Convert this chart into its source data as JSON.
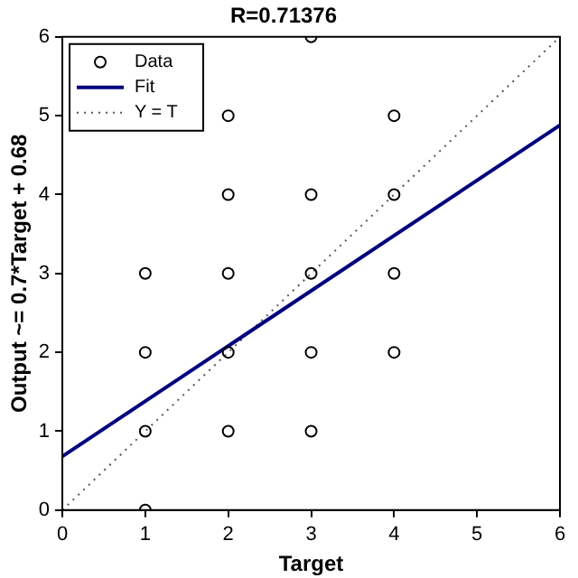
{
  "chart_data": {
    "type": "scatter",
    "title": "R=0.71376",
    "xlabel": "Target",
    "ylabel": "Output ~= 0.7*Target + 0.68",
    "xlim": [
      0,
      6
    ],
    "ylim": [
      0,
      6
    ],
    "xticks": [
      0,
      1,
      2,
      3,
      4,
      5,
      6
    ],
    "yticks": [
      0,
      1,
      2,
      3,
      4,
      5,
      6
    ],
    "legend": "top left",
    "grid": false,
    "series": [
      {
        "name": "Data",
        "type": "scatter",
        "marker": "circle",
        "color": "#000000",
        "x": [
          1,
          1,
          1,
          1,
          2,
          2,
          2,
          2,
          2,
          3,
          3,
          3,
          3,
          3,
          4,
          4,
          4,
          4
        ],
        "values": [
          0,
          1,
          2,
          3,
          1,
          2,
          3,
          4,
          5,
          1,
          2,
          3,
          4,
          6,
          2,
          3,
          4,
          5
        ]
      },
      {
        "name": "Fit",
        "type": "line",
        "marker": "none",
        "line_style": "solid",
        "color": "#00007f",
        "x": [
          0,
          6
        ],
        "values": [
          0.68,
          4.88
        ]
      },
      {
        "name": "Y = T",
        "type": "line",
        "marker": "none",
        "line_style": "dotted",
        "color": "#555555",
        "x": [
          0,
          6
        ],
        "values": [
          0,
          6
        ]
      }
    ]
  }
}
